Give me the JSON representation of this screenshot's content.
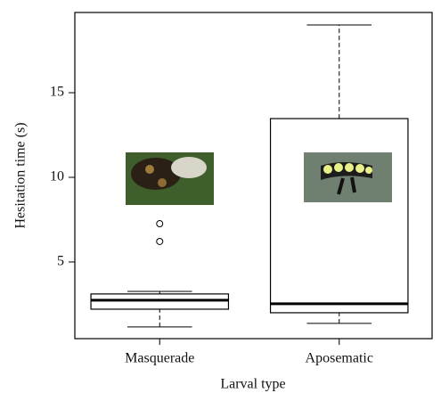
{
  "chart_data": {
    "type": "box",
    "x_label": "Larval type",
    "y_label": "Hesitation time (s)",
    "categories": [
      "Masquerade",
      "Aposematic"
    ],
    "boxes": [
      {
        "whisker_low": 1.16,
        "q1": 2.21,
        "median": 2.74,
        "q3": 3.11,
        "whisker_high": 3.26,
        "outliers": [
          7.26,
          6.21
        ]
      },
      {
        "whisker_low": 1.37,
        "q1": 2.0,
        "median": 2.53,
        "q3": 13.47,
        "whisker_high": 19.0,
        "outliers": []
      }
    ],
    "ylim": [
      0.47,
      19.74
    ],
    "yticks": [
      5,
      10,
      15
    ],
    "color": "#000000"
  }
}
